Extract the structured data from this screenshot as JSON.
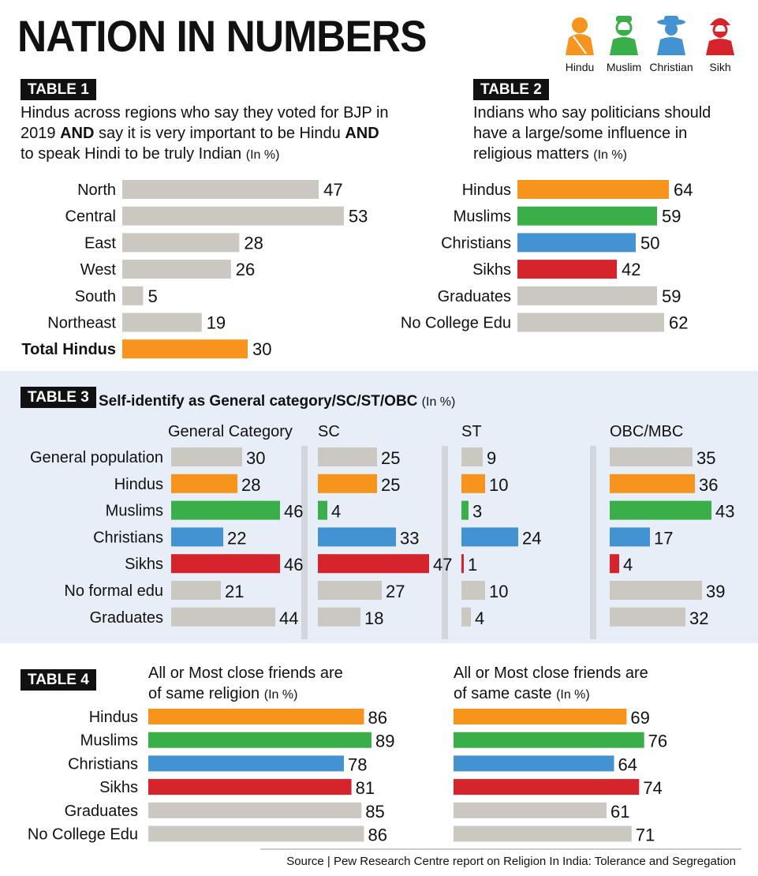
{
  "title": "NATION IN NUMBERS",
  "legend": [
    {
      "label": "Hindu",
      "color": "#f7941d",
      "icon": "hindu-figure-icon"
    },
    {
      "label": "Muslim",
      "color": "#3aae49",
      "icon": "muslim-figure-icon"
    },
    {
      "label": "Christian",
      "color": "#4393d3",
      "icon": "christian-figure-icon"
    },
    {
      "label": "Sikh",
      "color": "#d6242d",
      "icon": "sikh-figure-icon"
    }
  ],
  "colors": {
    "grey": "#cbc8c2",
    "hindu": "#f7941d",
    "muslim": "#3aae49",
    "christian": "#4393d3",
    "sikh": "#d6242d",
    "band": "#e8eef7"
  },
  "table1": {
    "tag": "TABLE 1",
    "desc_line1": "Hindus across regions who say they voted for BJP in",
    "desc_line2_a": "2019 ",
    "desc_line2_b": "AND",
    "desc_line2_c": " say it is very important to be Hindu ",
    "desc_line2_d": "AND",
    "desc_line3": "to speak Hindi to be truly Indian ",
    "unit": "(In %)"
  },
  "table2": {
    "tag": "TABLE 2",
    "desc_line1": "Indians who say politicians should",
    "desc_line2": "have a large/some influence in",
    "desc_line3": "religious matters ",
    "unit": "(In %)"
  },
  "table3": {
    "tag": "TABLE 3",
    "heading": "Self-identify as General category/SC/ST/OBC ",
    "unit": "(In %)"
  },
  "table4": {
    "tag": "TABLE 4",
    "left_line1": "All or Most close friends are",
    "left_line2": "of same religion ",
    "right_line1": "All or Most close friends are",
    "right_line2": "of same caste ",
    "unit": "(In %)"
  },
  "source": "Source | Pew Research Centre report on Religion In India: Tolerance and Segregation",
  "chart_data": [
    {
      "type": "bar",
      "id": "table1",
      "categories": [
        "North",
        "Central",
        "East",
        "West",
        "South",
        "Northeast",
        "Total Hindus"
      ],
      "values": [
        47,
        53,
        28,
        26,
        5,
        19,
        30
      ],
      "bar_colors": [
        "grey",
        "grey",
        "grey",
        "grey",
        "grey",
        "grey",
        "hindu"
      ]
    },
    {
      "type": "bar",
      "id": "table2",
      "categories": [
        "Hindus",
        "Muslims",
        "Christians",
        "Sikhs",
        "Graduates",
        "No College Edu"
      ],
      "values": [
        64,
        59,
        50,
        42,
        59,
        62
      ],
      "bar_colors": [
        "hindu",
        "muslim",
        "christian",
        "sikh",
        "grey",
        "grey"
      ]
    },
    {
      "type": "bar",
      "id": "table3",
      "categories": [
        "General population",
        "Hindus",
        "Muslims",
        "Christians",
        "Sikhs",
        "No formal edu",
        "Graduates"
      ],
      "bar_colors": [
        "grey",
        "hindu",
        "muslim",
        "christian",
        "sikh",
        "grey",
        "grey"
      ],
      "series": [
        {
          "name": "General Category",
          "values": [
            30,
            28,
            46,
            22,
            46,
            21,
            44
          ]
        },
        {
          "name": "SC",
          "values": [
            25,
            25,
            4,
            33,
            47,
            27,
            18
          ]
        },
        {
          "name": "ST",
          "values": [
            9,
            10,
            3,
            24,
            1,
            10,
            4
          ]
        },
        {
          "name": "OBC/MBC",
          "values": [
            35,
            36,
            43,
            17,
            4,
            39,
            32
          ]
        }
      ]
    },
    {
      "type": "bar",
      "id": "table4",
      "categories": [
        "Hindus",
        "Muslims",
        "Christians",
        "Sikhs",
        "Graduates",
        "No College Edu"
      ],
      "bar_colors": [
        "hindu",
        "muslim",
        "christian",
        "sikh",
        "grey",
        "grey"
      ],
      "series": [
        {
          "name": "All or Most close friends are of same religion",
          "values": [
            86,
            89,
            78,
            81,
            85,
            86
          ]
        },
        {
          "name": "All or Most close friends are of same caste",
          "values": [
            69,
            76,
            64,
            74,
            61,
            71
          ]
        }
      ]
    }
  ]
}
